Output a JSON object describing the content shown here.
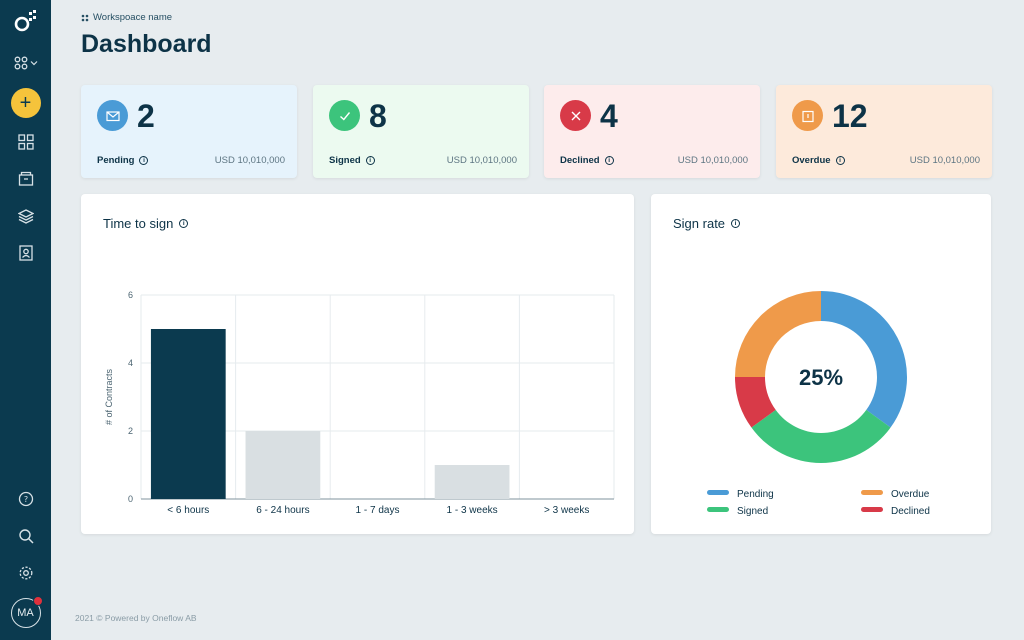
{
  "sidebar": {
    "logo_icon": "oneflow-logo-icon",
    "workspace_icon": "workspace-switcher-icon",
    "add_label": "+",
    "nav_icons": [
      "grid-icon",
      "folder-icon",
      "layers-icon",
      "contact-icon"
    ],
    "bottom_icons": [
      "help-icon",
      "search-icon",
      "settings-icon"
    ],
    "avatar_initials": "MA"
  },
  "header": {
    "workspace_name": "Workspoace name",
    "title": "Dashboard"
  },
  "stats": [
    {
      "label": "Pending",
      "count": "2",
      "amount": "USD 10,010,000",
      "icon": "envelope-icon",
      "color": "#4a9bd6",
      "bg": "#e6f3fc"
    },
    {
      "label": "Signed",
      "count": "8",
      "amount": "USD 10,010,000",
      "icon": "checkmark-icon",
      "color": "#3cc47c",
      "bg": "#ecfaf0"
    },
    {
      "label": "Declined",
      "count": "4",
      "amount": "USD 10,010,000",
      "icon": "x-icon",
      "color": "#d83a48",
      "bg": "#fdecec"
    },
    {
      "label": "Overdue",
      "count": "12",
      "amount": "USD 10,010,000",
      "icon": "calendar-icon",
      "color": "#ef9a4a",
      "bg": "#fdeadb"
    }
  ],
  "time_to_sign": {
    "title": "Time to sign",
    "chart_data": {
      "type": "bar",
      "categories": [
        "< 6 hours",
        "6 - 24 hours",
        "1 - 7 days",
        "1 - 3 weeks",
        "> 3 weeks"
      ],
      "values": [
        5,
        2,
        0,
        1,
        0
      ],
      "ylabel": "# of Contracts",
      "ylim": [
        0,
        6
      ],
      "yticks": [
        0,
        2,
        4,
        6
      ],
      "grid": true,
      "bar_colors": [
        "#0b3a4f",
        "#d9dfe2",
        "#d9dfe2",
        "#d9dfe2",
        "#d9dfe2"
      ]
    }
  },
  "sign_rate": {
    "title": "Sign rate",
    "chart_data": {
      "type": "pie",
      "center_label": "25%",
      "slices": [
        {
          "name": "Pending",
          "value": 35,
          "color": "#4a9bd6"
        },
        {
          "name": "Signed",
          "value": 30,
          "color": "#3cc47c"
        },
        {
          "name": "Declined",
          "value": 10,
          "color": "#d83a48"
        },
        {
          "name": "Overdue",
          "value": 25,
          "color": "#ef9a4a"
        }
      ],
      "legend": [
        {
          "name": "Pending",
          "color": "#4a9bd6"
        },
        {
          "name": "Overdue",
          "color": "#ef9a4a"
        },
        {
          "name": "Signed",
          "color": "#3cc47c"
        },
        {
          "name": "Declined",
          "color": "#d83a48"
        }
      ]
    }
  },
  "footer": {
    "text": "2021 © Powered by Oneflow AB"
  }
}
